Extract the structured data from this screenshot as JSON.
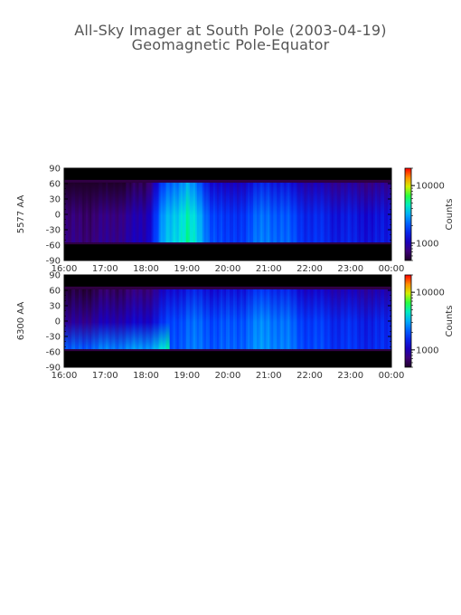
{
  "title": {
    "line1": "All-Sky Imager at South Pole (2003-04-19)",
    "line2": "Geomagnetic Pole-Equator"
  },
  "colors": {
    "background": "#ffffff",
    "nodata": "#000000",
    "axis": "#000000"
  },
  "chart_data": [
    {
      "type": "heatmap",
      "title": "",
      "ylabel": "5577 AA",
      "xlabel": "",
      "x_ticks": [
        "16:00",
        "17:00",
        "18:00",
        "19:00",
        "20:00",
        "21:00",
        "22:00",
        "23:00",
        "00:00"
      ],
      "x_range_hours": [
        16,
        24
      ],
      "y_ticks": [
        90,
        60,
        30,
        0,
        -30,
        -60,
        -90
      ],
      "ylim": [
        -90,
        90
      ],
      "valid_band_deg": [
        -55,
        62
      ],
      "colorbar": {
        "label": "Counts",
        "scale": "log",
        "ticks": [
          "10000",
          "1000"
        ],
        "tick_values": [
          10000,
          1000
        ],
        "range": [
          500,
          20000
        ]
      },
      "description_points": [
        {
          "time_h": 16.0,
          "level": 0.08
        },
        {
          "time_h": 17.0,
          "level": 0.1
        },
        {
          "time_h": 18.0,
          "level": 0.18
        },
        {
          "time_h": 18.4,
          "level": 0.45
        },
        {
          "time_h": 19.0,
          "level": 0.62
        },
        {
          "time_h": 19.5,
          "level": 0.4
        },
        {
          "time_h": 20.0,
          "level": 0.3
        },
        {
          "time_h": 21.0,
          "level": 0.42
        },
        {
          "time_h": 22.0,
          "level": 0.3
        },
        {
          "time_h": 23.0,
          "level": 0.26
        },
        {
          "time_h": 24.0,
          "level": 0.24
        }
      ]
    },
    {
      "type": "heatmap",
      "title": "",
      "ylabel": "6300 AA",
      "xlabel": "",
      "x_ticks": [
        "16:00",
        "17:00",
        "18:00",
        "19:00",
        "20:00",
        "21:00",
        "22:00",
        "23:00",
        "00:00"
      ],
      "x_range_hours": [
        16,
        24
      ],
      "y_ticks": [
        90,
        60,
        30,
        0,
        -30,
        -60,
        -90
      ],
      "ylim": [
        -90,
        90
      ],
      "valid_band_deg": [
        -55,
        62
      ],
      "colorbar": {
        "label": "Counts",
        "scale": "log",
        "ticks": [
          "10000",
          "1000"
        ],
        "tick_values": [
          10000,
          1000
        ],
        "range": [
          500,
          20000
        ]
      },
      "description_points": [
        {
          "time_h": 16.0,
          "level": 0.12
        },
        {
          "time_h": 17.0,
          "level": 0.18
        },
        {
          "time_h": 18.0,
          "level": 0.22
        },
        {
          "time_h": 18.6,
          "level": 0.35
        },
        {
          "time_h": 19.0,
          "level": 0.4
        },
        {
          "time_h": 20.0,
          "level": 0.36
        },
        {
          "time_h": 21.0,
          "level": 0.45
        },
        {
          "time_h": 22.0,
          "level": 0.34
        },
        {
          "time_h": 23.0,
          "level": 0.3
        },
        {
          "time_h": 24.0,
          "level": 0.28
        }
      ]
    }
  ]
}
